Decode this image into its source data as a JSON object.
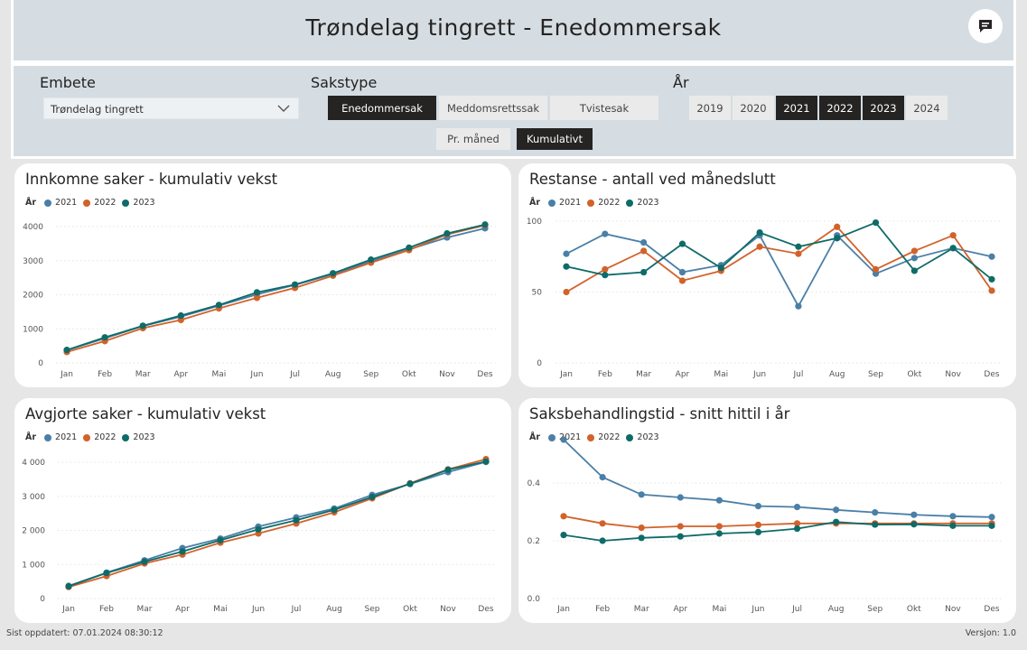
{
  "header": {
    "title": "Trøndelag tingrett - Enedommersak"
  },
  "filters": {
    "embete_label": "Embete",
    "embete_value": "Trøndelag tingrett",
    "sakstype_label": "Sakstype",
    "sakstype_options": [
      {
        "label": "Enedommersak",
        "selected": true
      },
      {
        "label": "Meddomsrettssak",
        "selected": false
      },
      {
        "label": "Tvistesak",
        "selected": false
      }
    ],
    "ar_label": "År",
    "year_options": [
      {
        "label": "2019",
        "selected": false
      },
      {
        "label": "2020",
        "selected": false
      },
      {
        "label": "2021",
        "selected": true
      },
      {
        "label": "2022",
        "selected": true
      },
      {
        "label": "2023",
        "selected": true
      },
      {
        "label": "2024",
        "selected": false
      }
    ],
    "mode_options": [
      {
        "label": "Pr. måned",
        "selected": false
      },
      {
        "label": "Kumulativt",
        "selected": true
      }
    ]
  },
  "colors": {
    "2021": "#4a7fa7",
    "2022": "#d2622a",
    "2023": "#0e6b68"
  },
  "chart_data": [
    {
      "id": "innkomne",
      "type": "line",
      "title": "Innkomne saker - kumulativ vekst",
      "legend_title": "År",
      "categories": [
        "Jan",
        "Feb",
        "Mar",
        "Apr",
        "Mai",
        "Jun",
        "Jul",
        "Aug",
        "Sep",
        "Okt",
        "Nov",
        "Des"
      ],
      "ylim": [
        0,
        4000
      ],
      "yticks": [
        0,
        1000,
        2000,
        3000,
        4000
      ],
      "ytick_labels": [
        "0",
        "1000",
        "2000",
        "3000",
        "4000"
      ],
      "series": [
        {
          "name": "2021",
          "values": [
            370,
            720,
            1080,
            1360,
            1680,
            2010,
            2290,
            2600,
            2980,
            3330,
            3680,
            3950
          ]
        },
        {
          "name": "2022",
          "values": [
            320,
            640,
            1020,
            1260,
            1600,
            1910,
            2200,
            2560,
            2940,
            3310,
            3770,
            4040
          ]
        },
        {
          "name": "2023",
          "values": [
            380,
            750,
            1090,
            1390,
            1700,
            2070,
            2300,
            2630,
            3030,
            3380,
            3800,
            4060
          ]
        }
      ]
    },
    {
      "id": "restanse",
      "type": "line",
      "title": "Restanse - antall ved månedslutt",
      "legend_title": "År",
      "categories": [
        "Jan",
        "Feb",
        "Mar",
        "Apr",
        "Mai",
        "Jun",
        "Jul",
        "Aug",
        "Sep",
        "Okt",
        "Nov",
        "Des"
      ],
      "ylim": [
        0,
        100
      ],
      "yticks": [
        0,
        50,
        100
      ],
      "ytick_labels": [
        "0",
        "50",
        "100"
      ],
      "series": [
        {
          "name": "2021",
          "values": [
            77,
            91,
            85,
            64,
            69,
            90,
            40,
            90,
            63,
            74,
            81,
            75
          ]
        },
        {
          "name": "2022",
          "values": [
            50,
            66,
            79,
            58,
            65,
            82,
            77,
            96,
            66,
            79,
            90,
            51
          ]
        },
        {
          "name": "2023",
          "values": [
            68,
            62,
            64,
            84,
            67,
            92,
            82,
            88,
            99,
            65,
            81,
            59
          ]
        }
      ]
    },
    {
      "id": "avgjorte",
      "type": "line",
      "title": "Avgjorte saker - kumulativ vekst",
      "legend_title": "År",
      "categories": [
        "Jan",
        "Feb",
        "Mar",
        "Apr",
        "Mai",
        "Jun",
        "Jul",
        "Aug",
        "Sep",
        "Okt",
        "Nov",
        "Des"
      ],
      "ylim": [
        0,
        4000
      ],
      "yticks": [
        0,
        1000,
        2000,
        3000,
        4000
      ],
      "ytick_labels": [
        "0",
        "1 000",
        "2 000",
        "3 000",
        "4 000"
      ],
      "series": [
        {
          "name": "2021",
          "values": [
            370,
            760,
            1120,
            1480,
            1760,
            2110,
            2380,
            2640,
            3040,
            3360,
            3710,
            4010
          ]
        },
        {
          "name": "2022",
          "values": [
            340,
            660,
            1030,
            1290,
            1640,
            1910,
            2200,
            2530,
            2940,
            3380,
            3790,
            4090
          ]
        },
        {
          "name": "2023",
          "values": [
            360,
            750,
            1080,
            1380,
            1710,
            2030,
            2300,
            2600,
            2980,
            3370,
            3780,
            4020
          ]
        }
      ]
    },
    {
      "id": "saksbehandlingstid",
      "type": "line",
      "title": "Saksbehandlingstid - snitt hittil i år",
      "legend_title": "År",
      "categories": [
        "Jan",
        "Feb",
        "Mar",
        "Apr",
        "Mai",
        "Jun",
        "Jul",
        "Aug",
        "Sep",
        "Okt",
        "Nov",
        "Des"
      ],
      "ylim": [
        0,
        0.6
      ],
      "yticks": [
        0,
        0.2,
        0.4
      ],
      "ytick_labels": [
        "0.0",
        "0.2",
        "0.4"
      ],
      "series": [
        {
          "name": "2021",
          "values": [
            0.55,
            0.42,
            0.36,
            0.35,
            0.34,
            0.32,
            0.317,
            0.307,
            0.298,
            0.29,
            0.285,
            0.282
          ]
        },
        {
          "name": "2022",
          "values": [
            0.285,
            0.26,
            0.245,
            0.25,
            0.25,
            0.255,
            0.26,
            0.26,
            0.26,
            0.26,
            0.26,
            0.26
          ]
        },
        {
          "name": "2023",
          "values": [
            0.22,
            0.2,
            0.21,
            0.215,
            0.225,
            0.23,
            0.242,
            0.265,
            0.256,
            0.257,
            0.252,
            0.252
          ]
        }
      ]
    }
  ],
  "footer": {
    "updated": "Sist oppdatert: 07.01.2024 08:30:12",
    "version": "Versjon: 1.0"
  }
}
